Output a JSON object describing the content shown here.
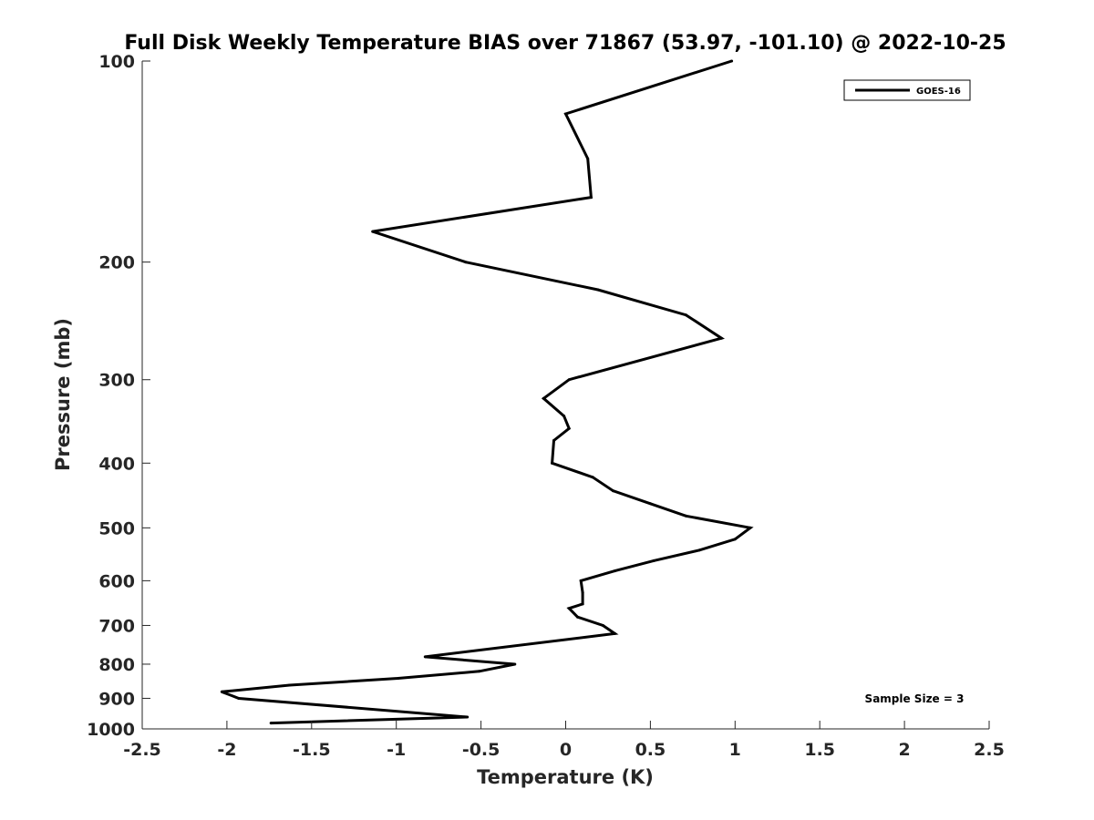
{
  "chart_data": {
    "type": "line",
    "title": "Full Disk Weekly Temperature BIAS over 71867 (53.97, -101.10) @ 2022-10-25",
    "xlabel": "Temperature (K)",
    "ylabel": "Pressure (mb)",
    "xlim": [
      -2.5,
      2.5
    ],
    "ylim": [
      100,
      1000
    ],
    "y_scale": "log",
    "y_reversed": true,
    "x_ticks": [
      "-2.5",
      "-2",
      "-1.5",
      "-1",
      "-0.5",
      "0",
      "0.5",
      "1",
      "1.5",
      "2",
      "2.5"
    ],
    "y_ticks": [
      "100",
      "200",
      "300",
      "400",
      "500",
      "600",
      "700",
      "800",
      "900",
      "1000"
    ],
    "grid": false,
    "legend_position": "top-right",
    "series": [
      {
        "name": "GOES-16",
        "color": "#000000",
        "points": [
          {
            "x": 0.98,
            "y": 100
          },
          {
            "x": 0.0,
            "y": 120
          },
          {
            "x": 0.13,
            "y": 140
          },
          {
            "x": 0.15,
            "y": 160
          },
          {
            "x": -1.14,
            "y": 180
          },
          {
            "x": -0.59,
            "y": 200
          },
          {
            "x": 0.19,
            "y": 220
          },
          {
            "x": 0.71,
            "y": 240
          },
          {
            "x": 0.92,
            "y": 260
          },
          {
            "x": 0.02,
            "y": 300
          },
          {
            "x": -0.13,
            "y": 320
          },
          {
            "x": -0.01,
            "y": 340
          },
          {
            "x": 0.02,
            "y": 355
          },
          {
            "x": -0.07,
            "y": 370
          },
          {
            "x": -0.08,
            "y": 400
          },
          {
            "x": 0.16,
            "y": 420
          },
          {
            "x": 0.28,
            "y": 440
          },
          {
            "x": 0.5,
            "y": 460
          },
          {
            "x": 0.71,
            "y": 480
          },
          {
            "x": 1.09,
            "y": 500
          },
          {
            "x": 1.0,
            "y": 520
          },
          {
            "x": 0.79,
            "y": 540
          },
          {
            "x": 0.52,
            "y": 560
          },
          {
            "x": 0.29,
            "y": 580
          },
          {
            "x": 0.09,
            "y": 600
          },
          {
            "x": 0.1,
            "y": 625
          },
          {
            "x": 0.1,
            "y": 650
          },
          {
            "x": 0.02,
            "y": 660
          },
          {
            "x": 0.07,
            "y": 680
          },
          {
            "x": 0.22,
            "y": 700
          },
          {
            "x": 0.29,
            "y": 720
          },
          {
            "x": -0.83,
            "y": 780
          },
          {
            "x": -0.3,
            "y": 800
          },
          {
            "x": -0.51,
            "y": 820
          },
          {
            "x": -0.99,
            "y": 840
          },
          {
            "x": -1.63,
            "y": 860
          },
          {
            "x": -2.03,
            "y": 880
          },
          {
            "x": -1.93,
            "y": 900
          },
          {
            "x": -0.58,
            "y": 960
          },
          {
            "x": -1.74,
            "y": 980
          }
        ]
      }
    ],
    "annotation": "Sample Size = 3"
  }
}
